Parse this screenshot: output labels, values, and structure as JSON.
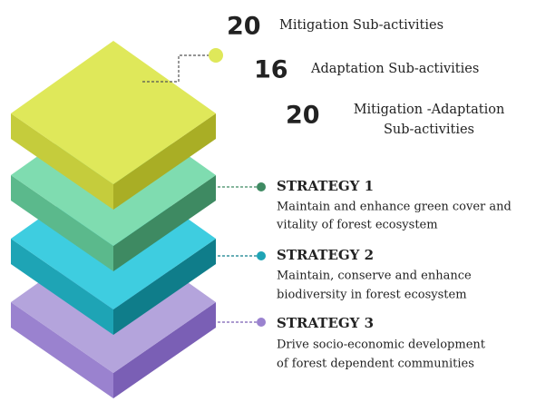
{
  "stats": [
    {
      "number": 20,
      "label": [
        "Mitigation Sub-activities"
      ]
    },
    {
      "number": 16,
      "label": [
        "Adaptation Sub-activities"
      ]
    },
    {
      "number": 20,
      "label": [
        "Mitigation -Adaptation",
        "Sub-activities"
      ]
    }
  ],
  "strategies": [
    {
      "title": "STRATEGY 1",
      "description": [
        "Maintain and enhance green cover and",
        "vitality of forest ecosystem"
      ]
    },
    {
      "title": "STRATEGY 2",
      "description": [
        "Maintain, conserve and enhance",
        "biodiversity in forest ecosystem"
      ]
    },
    {
      "title": "STRATEGY 3",
      "description": [
        "Drive socio-economic development",
        "of forest dependent communities"
      ]
    }
  ]
}
